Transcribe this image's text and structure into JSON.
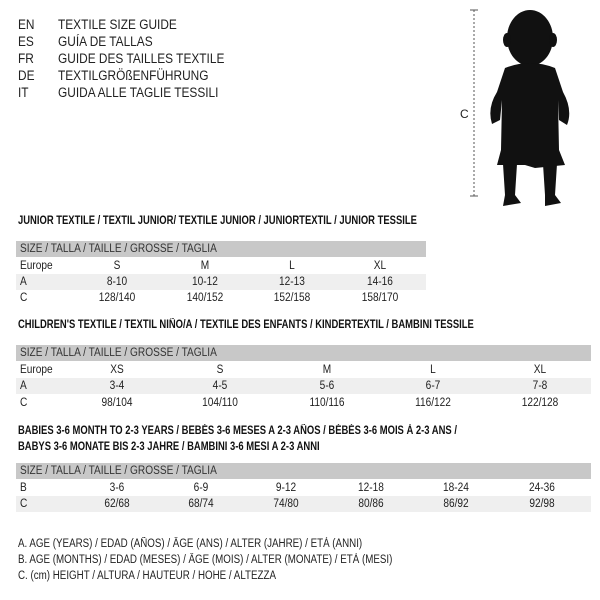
{
  "languages": [
    {
      "code": "EN",
      "title": "TEXTILE SIZE GUIDE"
    },
    {
      "code": "ES",
      "title": "GUÍA DE TALLAS"
    },
    {
      "code": "FR",
      "title": "GUIDE DES TAILLES TEXTILE"
    },
    {
      "code": "DE",
      "title": "TEXTILGRÖßENFÜHRUNG"
    },
    {
      "code": "IT",
      "title": "GUIDA ALLE TAGLIE TESSILI"
    }
  ],
  "figure": {
    "measure_label": "C",
    "icon": "child-silhouette"
  },
  "size_header": "SIZE / TALLA / TAILLE / GRÖSSE / TAGLIA",
  "colors": {
    "header_bg": "#c8c8c8",
    "alt_row_bg": "#efefef"
  },
  "junior": {
    "title": "JUNIOR TEXTILE / TEXTIL JUNIOR/ TEXTILE JUNIOR / JUNIORTEXTIL / JUNIOR TESSILE",
    "rows": [
      {
        "label": "Europe",
        "values": [
          "S",
          "M",
          "L",
          "XL"
        ]
      },
      {
        "label": "A",
        "values": [
          "8-10",
          "10-12",
          "12-13",
          "14-16"
        ]
      },
      {
        "label": "C",
        "values": [
          "128/140",
          "140/152",
          "152/158",
          "158/170"
        ]
      }
    ]
  },
  "children": {
    "title": "CHILDREN'S TEXTILE / TEXTIL NIÑO/A / TEXTILE DES ENFANTS / KINDERTEXTIL / BAMBINI TESSILE",
    "rows": [
      {
        "label": "Europe",
        "values": [
          "XS",
          "S",
          "M",
          "L",
          "XL"
        ]
      },
      {
        "label": "A",
        "values": [
          "3-4",
          "4-5",
          "5-6",
          "6-7",
          "7-8"
        ]
      },
      {
        "label": "C",
        "values": [
          "98/104",
          "104/110",
          "110/116",
          "116/122",
          "122/128"
        ]
      }
    ]
  },
  "babies": {
    "title_line1": "BABIES 3-6 MONTH TO 2-3 YEARS / BEBÉS 3-6 MESES A 2-3 AÑOS / BÉBÉS 3-6 MOIS À 2-3 ANS /",
    "title_line2": "BABYS 3-6 MONATE BIS 2-3 JAHRE / BAMBINI 3-6 MESI A 2-3 ANNI",
    "rows": [
      {
        "label": "B",
        "values": [
          "3-6",
          "6-9",
          "9-12",
          "12-18",
          "18-24",
          "24-36"
        ]
      },
      {
        "label": "C",
        "values": [
          "62/68",
          "68/74",
          "74/80",
          "80/86",
          "86/92",
          "92/98"
        ]
      }
    ]
  },
  "legend": [
    "A. AGE (YEARS) / EDAD (AÑOS) / ÂGE (ANS) / ALTER (JAHRE) / ETÀ (ANNI)",
    "B. AGE (MONTHS) / EDAD (MESES) / ÂGE (MOIS) / ALTER (MONATE) / ETÀ (MESI)",
    "C. (cm) HEIGHT / ALTURA / HAUTEUR / HÖHE / ALTEZZA"
  ]
}
